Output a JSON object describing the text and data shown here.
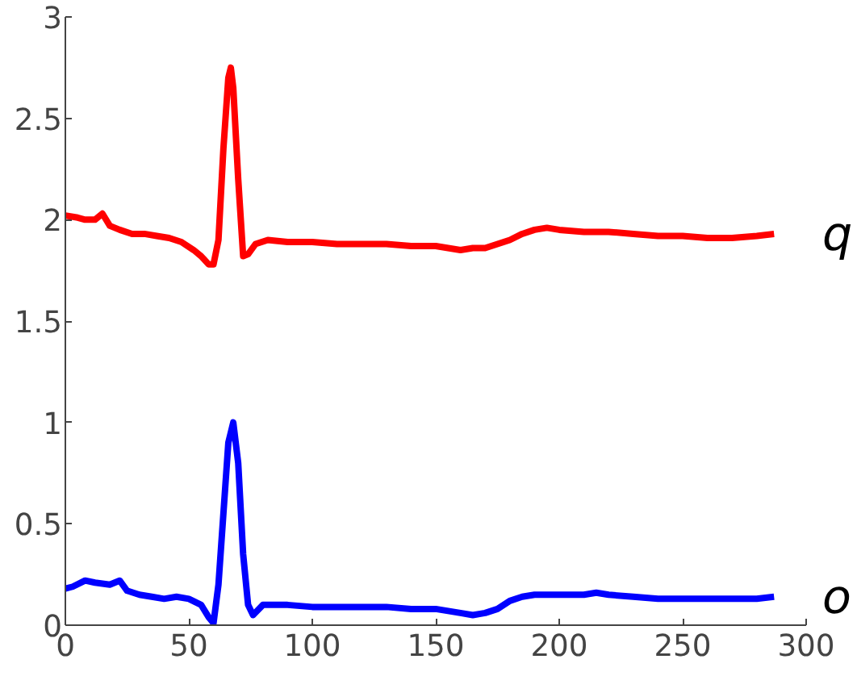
{
  "chart_data": {
    "type": "line",
    "xlim": [
      0,
      300
    ],
    "ylim": [
      0,
      3
    ],
    "xticks": [
      0,
      50,
      100,
      150,
      200,
      250,
      300
    ],
    "yticks": [
      0,
      0.5,
      1,
      1.5,
      2,
      2.5,
      3
    ],
    "grid": false,
    "marker": "none",
    "line_style": "solid",
    "series": [
      {
        "name": "q",
        "color": "#ff0000",
        "x": [
          0,
          5,
          8,
          12,
          15,
          18,
          22,
          27,
          32,
          37,
          42,
          47,
          52,
          55,
          58,
          60,
          62,
          64,
          66,
          67,
          68,
          70,
          72,
          74,
          77,
          82,
          90,
          100,
          110,
          120,
          130,
          140,
          150,
          160,
          165,
          170,
          175,
          180,
          185,
          190,
          195,
          200,
          210,
          220,
          230,
          240,
          250,
          260,
          270,
          280,
          287
        ],
        "values": [
          2.02,
          2.01,
          2.0,
          2.0,
          2.03,
          1.97,
          1.95,
          1.93,
          1.93,
          1.92,
          1.91,
          1.89,
          1.85,
          1.82,
          1.78,
          1.78,
          1.9,
          2.35,
          2.7,
          2.75,
          2.65,
          2.2,
          1.82,
          1.83,
          1.88,
          1.9,
          1.89,
          1.89,
          1.88,
          1.88,
          1.88,
          1.87,
          1.87,
          1.85,
          1.86,
          1.86,
          1.88,
          1.9,
          1.93,
          1.95,
          1.96,
          1.95,
          1.94,
          1.94,
          1.93,
          1.92,
          1.92,
          1.91,
          1.91,
          1.92,
          1.93
        ]
      },
      {
        "name": "o",
        "color": "#0000ff",
        "x": [
          0,
          3,
          8,
          12,
          18,
          22,
          25,
          30,
          35,
          40,
          45,
          50,
          55,
          58,
          60,
          62,
          64,
          66,
          68,
          70,
          72,
          74,
          76,
          80,
          90,
          100,
          110,
          120,
          130,
          140,
          150,
          160,
          165,
          170,
          175,
          180,
          185,
          190,
          200,
          210,
          215,
          220,
          230,
          240,
          250,
          260,
          270,
          280,
          287
        ],
        "values": [
          0.18,
          0.19,
          0.22,
          0.21,
          0.2,
          0.22,
          0.17,
          0.15,
          0.14,
          0.13,
          0.14,
          0.13,
          0.1,
          0.04,
          0.01,
          0.2,
          0.55,
          0.9,
          1.0,
          0.8,
          0.35,
          0.1,
          0.05,
          0.1,
          0.1,
          0.09,
          0.09,
          0.09,
          0.09,
          0.08,
          0.08,
          0.06,
          0.05,
          0.06,
          0.08,
          0.12,
          0.14,
          0.15,
          0.15,
          0.15,
          0.16,
          0.15,
          0.14,
          0.13,
          0.13,
          0.13,
          0.13,
          0.13,
          0.14
        ]
      }
    ]
  }
}
